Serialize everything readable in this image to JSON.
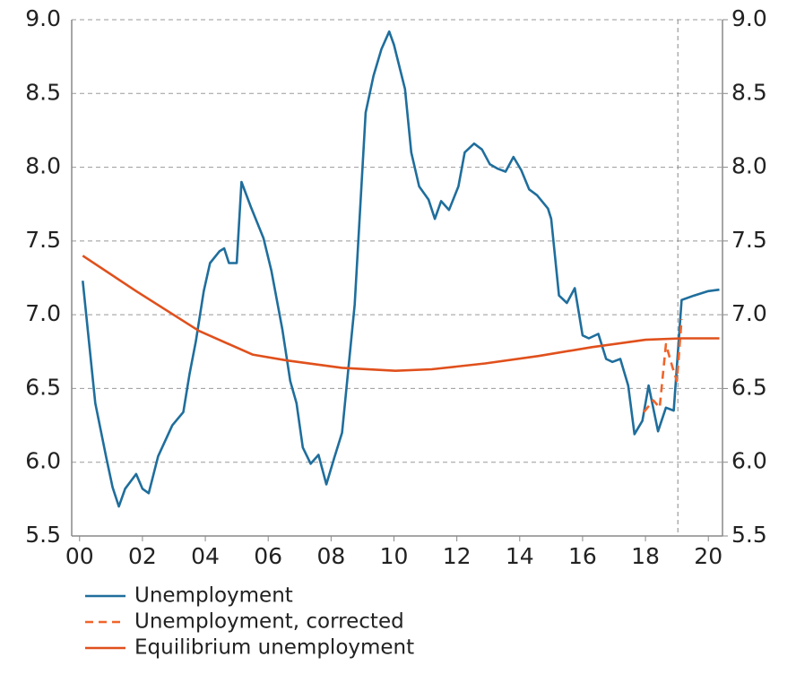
{
  "chart_data": {
    "type": "line",
    "xlim": [
      -0.25,
      20.45
    ],
    "xticks": [
      {
        "value": 0,
        "label": "00"
      },
      {
        "value": 2,
        "label": "02"
      },
      {
        "value": 4,
        "label": "04"
      },
      {
        "value": 6,
        "label": "06"
      },
      {
        "value": 8,
        "label": "08"
      },
      10,
      12,
      14,
      16,
      18,
      20
    ],
    "ylim": [
      5.5,
      9.0
    ],
    "yticks": [
      {
        "value": 5.5,
        "label": "5.5"
      },
      {
        "value": 6,
        "label": "6.0"
      },
      {
        "value": 6.5,
        "label": "6.5"
      },
      {
        "value": 7,
        "label": "7.0"
      },
      {
        "value": 7.5,
        "label": "7.5"
      },
      {
        "value": 8,
        "label": "8.0"
      },
      {
        "value": 8.5,
        "label": "8.5"
      },
      {
        "value": 9,
        "label": "9.0"
      }
    ],
    "y2lim": [
      5.5,
      9.0
    ],
    "y2ticks": [
      {
        "value": 5.5,
        "label": "5.5"
      },
      {
        "value": 6,
        "label": "6.0"
      },
      {
        "value": 6.5,
        "label": "6.5"
      },
      {
        "value": 7,
        "label": "7.0"
      },
      {
        "value": 7.5,
        "label": "7.5"
      },
      {
        "value": 8,
        "label": "8.0"
      },
      {
        "value": 8.5,
        "label": "8.5"
      },
      {
        "value": 9,
        "label": "9.0"
      }
    ],
    "grid": true,
    "vline": 19.03,
    "series": [
      {
        "name": "Unemployment",
        "color": "#1f6e9c",
        "style": "solid",
        "x": [
          0.1,
          0.5,
          0.85,
          1.05,
          1.25,
          1.45,
          1.8,
          2.0,
          2.2,
          2.5,
          2.95,
          3.3,
          3.5,
          3.7,
          3.95,
          4.15,
          4.45,
          4.6,
          4.75,
          5.0,
          5.15,
          5.45,
          5.85,
          6.1,
          6.45,
          6.7,
          6.9,
          7.1,
          7.35,
          7.6,
          7.85,
          8.1,
          8.35,
          8.75,
          9.1,
          9.35,
          9.6,
          9.85,
          10.0,
          10.35,
          10.55,
          10.8,
          11.1,
          11.3,
          11.5,
          11.75,
          12.05,
          12.25,
          12.55,
          12.8,
          13.05,
          13.3,
          13.55,
          13.8,
          14.05,
          14.3,
          14.55,
          14.9,
          15.0,
          15.25,
          15.5,
          15.75,
          16.0,
          16.2,
          16.5,
          16.75,
          16.95,
          17.2,
          17.45,
          17.65,
          17.9,
          18.1,
          18.4,
          18.65,
          18.9,
          19.15,
          19.55,
          20.0,
          20.35
        ],
        "values": [
          7.23,
          6.4,
          6.03,
          5.83,
          5.7,
          5.82,
          5.92,
          5.82,
          5.79,
          6.04,
          6.25,
          6.34,
          6.6,
          6.82,
          7.16,
          7.35,
          7.43,
          7.45,
          7.35,
          7.35,
          7.9,
          7.73,
          7.52,
          7.3,
          6.9,
          6.55,
          6.4,
          6.1,
          5.99,
          6.05,
          5.85,
          6.03,
          6.2,
          7.07,
          8.37,
          8.62,
          8.8,
          8.92,
          8.83,
          8.53,
          8.1,
          7.87,
          7.78,
          7.65,
          7.77,
          7.71,
          7.87,
          8.1,
          8.16,
          8.12,
          8.02,
          7.99,
          7.97,
          8.07,
          7.98,
          7.85,
          7.81,
          7.72,
          7.65,
          7.13,
          7.08,
          7.18,
          6.86,
          6.84,
          6.87,
          6.7,
          6.68,
          6.7,
          6.52,
          6.19,
          6.28,
          6.52,
          6.21,
          6.37,
          6.35,
          7.1,
          7.13,
          7.16,
          7.17
        ]
      },
      {
        "name": "Unemployment, corrected",
        "color": "#f0642a",
        "style": "dashed",
        "x": [
          17.95,
          18.25,
          18.45,
          18.65,
          18.85,
          19.0,
          19.15
        ],
        "values": [
          6.34,
          6.42,
          6.37,
          6.8,
          6.65,
          6.55,
          6.97
        ]
      },
      {
        "name": "Equilibrium unemployment",
        "color": "#e0501c",
        "style": "solid",
        "x": [
          0.1,
          1.8,
          3.8,
          5.5,
          6.6,
          8.35,
          10.05,
          11.2,
          12.9,
          14.6,
          16.3,
          18.0,
          19.15,
          20.35
        ],
        "values": [
          7.4,
          7.16,
          6.89,
          6.73,
          6.69,
          6.64,
          6.62,
          6.63,
          6.67,
          6.72,
          6.78,
          6.83,
          6.84,
          6.84
        ]
      }
    ]
  }
}
